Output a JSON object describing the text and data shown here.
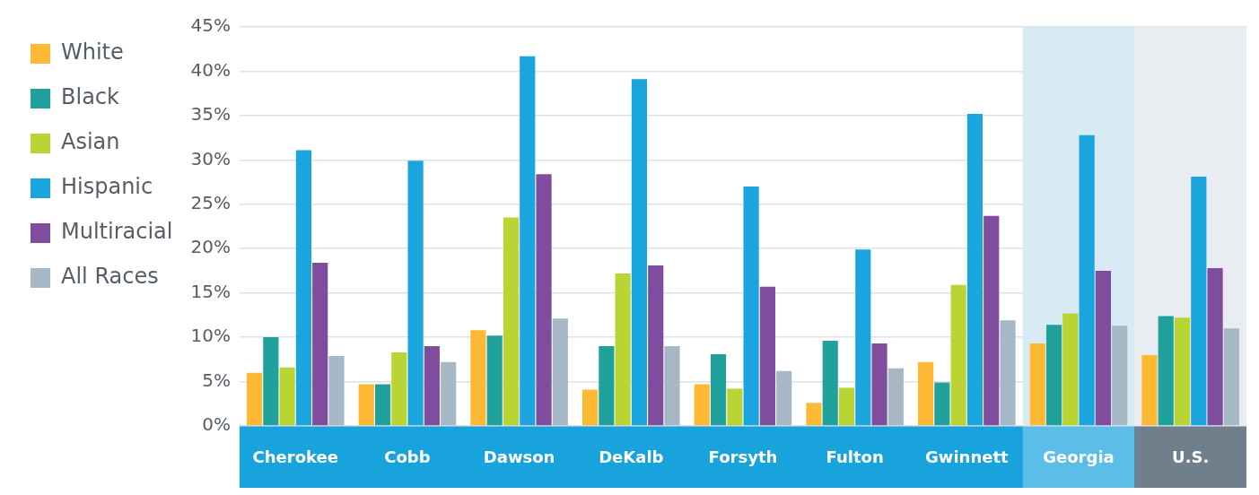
{
  "chart_data": {
    "type": "bar",
    "categories": [
      "Cherokee",
      "Cobb",
      "Dawson",
      "DeKalb",
      "Forsyth",
      "Fulton",
      "Gwinnett",
      "Georgia",
      "U.S."
    ],
    "series": [
      {
        "name": "White",
        "color": "#fdb933",
        "values": [
          6.0,
          4.7,
          10.8,
          4.1,
          4.7,
          2.6,
          7.2,
          9.3,
          8.0
        ]
      },
      {
        "name": "Black",
        "color": "#20a19c",
        "values": [
          10.0,
          4.7,
          10.2,
          9.0,
          8.1,
          9.6,
          4.9,
          11.4,
          12.4
        ]
      },
      {
        "name": "Asian",
        "color": "#b9d433",
        "values": [
          6.6,
          8.3,
          23.5,
          17.2,
          4.2,
          4.3,
          15.9,
          12.7,
          12.2
        ]
      },
      {
        "name": "Hispanic",
        "color": "#1aa5df",
        "values": [
          31.1,
          29.9,
          41.7,
          39.1,
          27.0,
          19.9,
          35.2,
          32.8,
          28.1
        ]
      },
      {
        "name": "Multiracial",
        "color": "#7f4c9e",
        "values": [
          18.4,
          9.0,
          28.4,
          18.1,
          15.7,
          9.3,
          23.7,
          17.5,
          17.8
        ]
      },
      {
        "name": "All Races",
        "color": "#a6b8c6",
        "values": [
          7.9,
          7.2,
          12.1,
          9.0,
          6.2,
          6.5,
          11.9,
          11.3,
          11.0
        ]
      }
    ],
    "ylim": [
      0,
      45
    ],
    "yticks": [
      {
        "value": 0,
        "label": "0%"
      },
      {
        "value": 5,
        "label": "5%"
      },
      {
        "value": 10,
        "label": "10%"
      },
      {
        "value": 15,
        "label": "15%"
      },
      {
        "value": 20,
        "label": "20%"
      },
      {
        "value": 25,
        "label": "25%"
      },
      {
        "value": 30,
        "label": "30%"
      },
      {
        "value": 35,
        "label": "35%"
      },
      {
        "value": 40,
        "label": "40%"
      },
      {
        "value": 45,
        "label": "45%"
      }
    ],
    "bands": [
      {
        "axis": "x",
        "from": "Georgia",
        "to": "Georgia",
        "color": "#d8eaf4"
      },
      {
        "axis": "x",
        "from": "U.S.",
        "to": "U.S.",
        "color": "#e9ecf1"
      }
    ],
    "grid": "y",
    "legend": "top left"
  }
}
